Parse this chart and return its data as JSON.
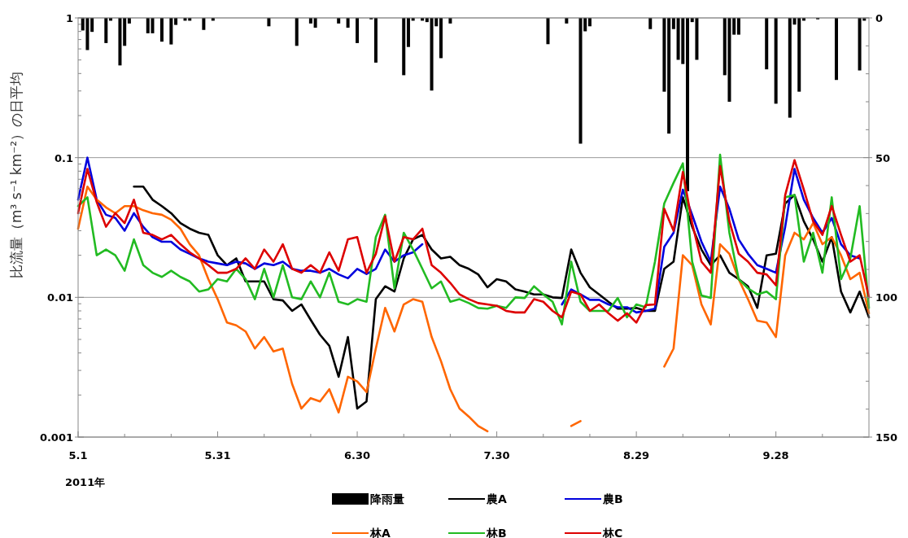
{
  "chart_data": {
    "type": "line",
    "ylabel": "比流量（m³ s⁻¹ km⁻²）の日平均",
    "xlabel": "2011年",
    "log": "y",
    "grid": "y",
    "legend": "bottom",
    "xlim": [
      "2011-05-01",
      "2011-10-18"
    ],
    "xticks": [
      {
        "value": "2011-05-01",
        "label": "5.1"
      },
      {
        "value": "2011-05-31",
        "label": "5.31"
      },
      {
        "value": "2011-06-30",
        "label": "6.30"
      },
      {
        "value": "2011-07-30",
        "label": "7.30"
      },
      {
        "value": "2011-08-29",
        "label": "8.29"
      },
      {
        "value": "2011-09-28",
        "label": "9.28"
      },
      {
        "value": "2011-05-11",
        "label": null
      },
      {
        "value": "2011-05-21",
        "label": null
      },
      {
        "value": "2011-06-10",
        "label": null
      },
      {
        "value": "2011-06-20",
        "label": null
      },
      {
        "value": "2011-07-10",
        "label": null
      },
      {
        "value": "2011-07-20",
        "label": null
      },
      {
        "value": "2011-08-09",
        "label": null
      },
      {
        "value": "2011-08-19",
        "label": null
      },
      {
        "value": "2011-09-08",
        "label": null
      },
      {
        "value": "2011-09-18",
        "label": null
      },
      {
        "value": "2011-10-08",
        "label": null
      }
    ],
    "ylim": [
      0.001,
      1
    ],
    "yticks": [
      0.001,
      0.01,
      0.1,
      1,
      {
        "value": 0.002,
        "label": null
      },
      {
        "value": 0.003,
        "label": null
      },
      {
        "value": 0.004,
        "label": null
      },
      {
        "value": 0.005,
        "label": null
      },
      {
        "value": 0.006,
        "label": null
      },
      {
        "value": 0.007,
        "label": null
      },
      {
        "value": 0.008,
        "label": null
      },
      {
        "value": 0.009,
        "label": null
      },
      {
        "value": 0.02,
        "label": null
      },
      {
        "value": 0.03,
        "label": null
      },
      {
        "value": 0.04,
        "label": null
      },
      {
        "value": 0.05,
        "label": null
      },
      {
        "value": 0.06,
        "label": null
      },
      {
        "value": 0.07,
        "label": null
      },
      {
        "value": 0.08,
        "label": null
      },
      {
        "value": 0.09,
        "label": null
      },
      {
        "value": 0.2,
        "label": null
      },
      {
        "value": 0.3,
        "label": null
      },
      {
        "value": 0.4,
        "label": null
      },
      {
        "value": 0.5,
        "label": null
      },
      {
        "value": 0.6,
        "label": null
      },
      {
        "value": 0.7,
        "label": null
      },
      {
        "value": 0.8,
        "label": null
      },
      {
        "value": 0.9,
        "label": null
      }
    ],
    "y2lim": [
      150,
      0
    ],
    "y2ticks": [
      0,
      50,
      100,
      150,
      {
        "value": 10,
        "label": null
      },
      {
        "value": 20,
        "label": null
      },
      {
        "value": 30,
        "label": null
      },
      {
        "value": 40,
        "label": null
      },
      {
        "value": 60,
        "label": null
      },
      {
        "value": 70,
        "label": null
      },
      {
        "value": 80,
        "label": null
      },
      {
        "value": 90,
        "label": null
      },
      {
        "value": 110,
        "label": null
      },
      {
        "value": 120,
        "label": null
      },
      {
        "value": 130,
        "label": null
      },
      {
        "value": 140,
        "label": null
      }
    ],
    "x": [
      "2011-05-01",
      "2011-05-03",
      "2011-05-05",
      "2011-05-07",
      "2011-05-09",
      "2011-05-11",
      "2011-05-13",
      "2011-05-15",
      "2011-05-17",
      "2011-05-19",
      "2011-05-21",
      "2011-05-23",
      "2011-05-25",
      "2011-05-27",
      "2011-05-29",
      "2011-05-31",
      "2011-06-02",
      "2011-06-04",
      "2011-06-06",
      "2011-06-08",
      "2011-06-10",
      "2011-06-12",
      "2011-06-14",
      "2011-06-16",
      "2011-06-18",
      "2011-06-20",
      "2011-06-22",
      "2011-06-24",
      "2011-06-26",
      "2011-06-28",
      "2011-06-30",
      "2011-07-02",
      "2011-07-04",
      "2011-07-06",
      "2011-07-08",
      "2011-07-10",
      "2011-07-12",
      "2011-07-14",
      "2011-07-16",
      "2011-07-18",
      "2011-07-20",
      "2011-07-22",
      "2011-07-24",
      "2011-07-26",
      "2011-07-28",
      "2011-07-30",
      "2011-08-01",
      "2011-08-03",
      "2011-08-05",
      "2011-08-07",
      "2011-08-09",
      "2011-08-11",
      "2011-08-13",
      "2011-08-15",
      "2011-08-17",
      "2011-08-19",
      "2011-08-21",
      "2011-08-23",
      "2011-08-25",
      "2011-08-27",
      "2011-08-29",
      "2011-08-31",
      "2011-09-02",
      "2011-09-04",
      "2011-09-06",
      "2011-09-08",
      "2011-09-10",
      "2011-09-12",
      "2011-09-14",
      "2011-09-16",
      "2011-09-18",
      "2011-09-20",
      "2011-09-22",
      "2011-09-24",
      "2011-09-26",
      "2011-09-28",
      "2011-09-30",
      "2011-10-02",
      "2011-10-04",
      "2011-10-06",
      "2011-10-08",
      "2011-10-10",
      "2011-10-12",
      "2011-10-14",
      "2011-10-16",
      "2011-10-18"
    ],
    "series": [
      {
        "name": "降雨量",
        "type": "bar",
        "axis": "y2",
        "color": "#000000",
        "x": [
          "2011-05-02",
          "2011-05-03",
          "2011-05-04",
          "2011-05-07",
          "2011-05-08",
          "2011-05-10",
          "2011-05-11",
          "2011-05-12",
          "2011-05-16",
          "2011-05-17",
          "2011-05-19",
          "2011-05-21",
          "2011-05-22",
          "2011-05-24",
          "2011-05-25",
          "2011-05-28",
          "2011-05-30",
          "2011-06-11",
          "2011-06-17",
          "2011-06-20",
          "2011-06-21",
          "2011-06-26",
          "2011-06-28",
          "2011-06-30",
          "2011-07-03",
          "2011-07-04",
          "2011-07-10",
          "2011-07-11",
          "2011-07-12",
          "2011-07-14",
          "2011-07-15",
          "2011-07-16",
          "2011-07-17",
          "2011-07-18",
          "2011-07-20",
          "2011-08-10",
          "2011-08-14",
          "2011-08-17",
          "2011-08-18",
          "2011-08-19",
          "2011-09-01",
          "2011-09-04",
          "2011-09-05",
          "2011-09-06",
          "2011-09-07",
          "2011-09-08",
          "2011-09-09",
          "2011-09-10",
          "2011-09-11",
          "2011-09-17",
          "2011-09-18",
          "2011-09-19",
          "2011-09-20",
          "2011-09-26",
          "2011-09-28",
          "2011-10-01",
          "2011-10-02",
          "2011-10-03",
          "2011-10-04",
          "2011-10-07",
          "2011-10-11",
          "2011-10-16",
          "2011-10-17"
        ],
        "values": [
          4.5,
          11.5,
          5,
          9,
          1,
          17,
          10,
          2,
          5.5,
          5.5,
          8.5,
          9.5,
          2.5,
          1,
          1,
          4.3,
          1,
          3,
          10,
          2,
          3.5,
          2,
          3.5,
          9,
          0.5,
          16,
          20.5,
          10.4,
          1,
          1,
          1.5,
          26,
          3,
          14.4,
          2,
          9.4,
          2,
          45,
          4.8,
          3,
          4,
          26.4,
          41.4,
          4,
          15,
          16.5,
          62,
          1.5,
          15,
          20.5,
          30,
          6,
          6,
          18.4,
          30.7,
          35.7,
          2.4,
          26.4,
          1,
          0.5,
          22.2,
          18.8,
          1
        ]
      },
      {
        "name": "農A",
        "color": "#000000",
        "values": [
          null,
          null,
          null,
          null,
          null,
          null,
          0.062,
          0.062,
          0.05,
          0.045,
          0.04,
          0.034,
          0.031,
          0.029,
          0.028,
          0.02,
          0.017,
          0.019,
          0.013,
          0.013,
          0.013,
          0.0097,
          0.0095,
          0.008,
          0.0089,
          0.0069,
          0.0054,
          0.0045,
          0.0027,
          0.0052,
          0.0016,
          0.0018,
          0.0097,
          0.012,
          0.011,
          0.019,
          0.026,
          0.028,
          0.022,
          0.019,
          0.0195,
          0.017,
          0.016,
          0.0146,
          0.0118,
          0.0135,
          0.013,
          0.0114,
          0.011,
          0.0105,
          0.0105,
          0.01,
          0.0099,
          0.022,
          0.015,
          0.0118,
          0.0105,
          0.0093,
          0.0083,
          0.0083,
          0.0084,
          0.008,
          0.008,
          0.016,
          0.018,
          0.052,
          0.032,
          0.022,
          0.017,
          0.02,
          0.015,
          0.0135,
          0.012,
          0.0084,
          0.02,
          0.0205,
          0.047,
          0.054,
          0.035,
          0.026,
          0.018,
          0.027,
          0.011,
          0.0078,
          0.011,
          0.0072
        ]
      },
      {
        "name": "農B",
        "color": "#0000dd",
        "values": [
          0.05,
          0.1,
          0.05,
          0.039,
          0.037,
          0.03,
          0.04,
          0.032,
          0.027,
          0.025,
          0.025,
          0.022,
          0.0205,
          0.019,
          0.018,
          0.0175,
          0.017,
          0.018,
          0.0175,
          0.016,
          0.0175,
          0.017,
          0.018,
          0.016,
          0.0155,
          0.0155,
          0.015,
          0.016,
          0.0146,
          0.0137,
          0.016,
          0.0147,
          0.016,
          0.022,
          0.018,
          0.02,
          0.021,
          0.024,
          null,
          null,
          null,
          null,
          null,
          null,
          null,
          null,
          null,
          null,
          null,
          null,
          null,
          null,
          0.0089,
          0.0114,
          0.0105,
          0.0096,
          0.0096,
          0.0089,
          0.0085,
          0.0085,
          0.0078,
          0.008,
          0.0083,
          0.023,
          0.029,
          0.059,
          0.039,
          0.025,
          0.018,
          0.062,
          0.043,
          0.026,
          0.0205,
          0.017,
          0.016,
          0.015,
          0.032,
          0.083,
          0.05,
          0.037,
          0.029,
          0.037,
          0.024,
          0.02,
          0.019,
          null
        ]
      },
      {
        "name": "林A",
        "color": "#ff6600",
        "values": [
          0.031,
          0.062,
          0.05,
          0.044,
          0.04,
          0.045,
          0.045,
          0.042,
          0.04,
          0.039,
          0.036,
          0.031,
          0.024,
          0.02,
          0.0135,
          0.0097,
          0.0066,
          0.0063,
          0.0057,
          0.0043,
          0.0052,
          0.0041,
          0.0043,
          0.0024,
          0.0016,
          0.0019,
          0.0018,
          0.0022,
          0.0015,
          0.0027,
          0.0025,
          0.0021,
          0.0043,
          0.0084,
          0.0057,
          0.0089,
          0.0097,
          0.0093,
          0.0052,
          0.0035,
          0.0022,
          0.0016,
          0.0014,
          0.0012,
          0.0011,
          null,
          null,
          null,
          null,
          null,
          null,
          null,
          null,
          0.0012,
          0.0013,
          null,
          null,
          null,
          null,
          null,
          null,
          null,
          null,
          0.0032,
          0.0043,
          0.02,
          0.017,
          0.0089,
          0.0064,
          0.024,
          0.0205,
          0.0135,
          0.0097,
          0.0068,
          0.0066,
          0.0052,
          0.02,
          0.029,
          0.026,
          0.034,
          0.024,
          0.027,
          0.02,
          0.0135,
          0.015,
          0.0077
        ]
      },
      {
        "name": "林B",
        "color": "#22bb22",
        "values": [
          0.045,
          0.052,
          0.02,
          0.022,
          0.02,
          0.0155,
          0.026,
          0.017,
          0.015,
          0.014,
          0.0155,
          0.014,
          0.013,
          0.011,
          0.0114,
          0.0135,
          0.013,
          0.016,
          0.0135,
          0.0097,
          0.016,
          0.01,
          0.017,
          0.01,
          0.0097,
          0.013,
          0.01,
          0.015,
          0.0093,
          0.0089,
          0.0097,
          0.0093,
          0.027,
          0.039,
          0.0116,
          0.029,
          0.022,
          0.016,
          0.0116,
          0.013,
          0.0093,
          0.0097,
          0.0091,
          0.0084,
          0.0083,
          0.0087,
          0.0084,
          0.01,
          0.0099,
          0.012,
          0.0105,
          0.0093,
          0.0064,
          0.018,
          0.0093,
          0.008,
          0.008,
          0.008,
          0.0099,
          0.0072,
          0.0089,
          0.0085,
          0.018,
          0.047,
          0.066,
          0.091,
          0.018,
          0.0103,
          0.0099,
          0.105,
          0.029,
          0.0135,
          0.0116,
          0.0105,
          0.011,
          0.0097,
          0.052,
          0.054,
          0.018,
          0.029,
          0.015,
          0.052,
          0.0135,
          0.019,
          0.045,
          0.0084
        ]
      },
      {
        "name": "林C",
        "color": "#dd0000",
        "values": [
          0.04,
          0.083,
          0.048,
          0.032,
          0.04,
          0.034,
          0.05,
          0.029,
          0.028,
          0.026,
          0.028,
          0.024,
          0.021,
          0.019,
          0.017,
          0.015,
          0.015,
          0.016,
          0.019,
          0.016,
          0.022,
          0.018,
          0.024,
          0.016,
          0.015,
          0.017,
          0.015,
          0.021,
          0.0155,
          0.026,
          0.027,
          0.015,
          0.0205,
          0.038,
          0.018,
          0.027,
          0.026,
          0.031,
          0.017,
          0.015,
          0.0127,
          0.0105,
          0.0097,
          0.0091,
          0.0089,
          0.0087,
          0.008,
          0.0078,
          0.0078,
          0.0097,
          0.0093,
          0.008,
          0.0072,
          0.011,
          0.0105,
          0.008,
          0.0089,
          0.0077,
          0.0068,
          0.0077,
          0.0066,
          0.0088,
          0.0089,
          0.043,
          0.03,
          0.079,
          0.034,
          0.018,
          0.015,
          0.087,
          0.035,
          0.0205,
          0.018,
          0.015,
          0.0146,
          0.0122,
          0.054,
          0.096,
          0.059,
          0.035,
          0.028,
          0.045,
          0.028,
          0.018,
          0.02,
          0.01
        ]
      }
    ]
  }
}
